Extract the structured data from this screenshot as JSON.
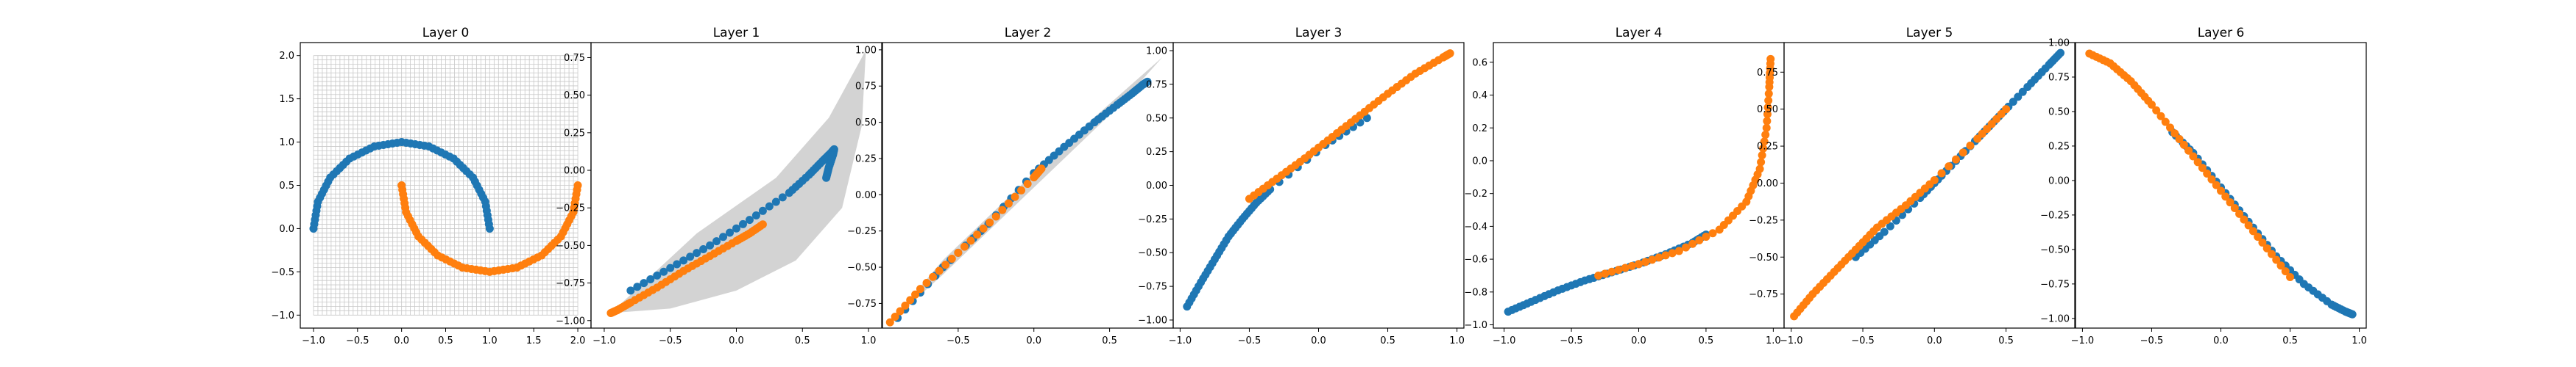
{
  "colors": {
    "class0": "#1f77b4",
    "class1": "#ff7f0e",
    "manifold_fill": "#d3d3d3",
    "grid": "#c8c8c8"
  },
  "chart_data": [
    {
      "type": "scatter",
      "title": "Layer 0",
      "xlim": [
        -1.15,
        2.15
      ],
      "ylim": [
        -1.15,
        2.15
      ],
      "xticks": [
        -1.0,
        -0.5,
        0.0,
        0.5,
        1.0,
        1.5,
        2.0
      ],
      "yticks": [
        -1.0,
        -0.5,
        0.0,
        0.5,
        1.0,
        1.5,
        2.0
      ],
      "tick_labels_x": [
        "−1.0",
        "−0.5",
        "0.0",
        "0.5",
        "1.0",
        "1.5",
        "2.0"
      ],
      "tick_labels_y": [
        "−1.0",
        "−0.5",
        "0.0",
        "0.5",
        "1.0",
        "1.5",
        "2.0"
      ],
      "grid": true,
      "series": [
        {
          "name": "",
          "color_key": "class0",
          "x": [
            -1.0,
            -0.95,
            -0.81,
            -0.59,
            -0.31,
            0.0,
            0.31,
            0.59,
            0.81,
            0.95,
            1.0
          ],
          "y": [
            0.0,
            0.31,
            0.59,
            0.81,
            0.95,
            1.0,
            0.95,
            0.81,
            0.59,
            0.31,
            0.0
          ]
        },
        {
          "name": "",
          "color_key": "class1",
          "x": [
            0.0,
            0.05,
            0.19,
            0.41,
            0.69,
            1.0,
            1.31,
            1.59,
            1.81,
            1.95,
            2.0
          ],
          "y": [
            0.5,
            0.19,
            -0.09,
            -0.31,
            -0.45,
            -0.5,
            -0.45,
            -0.31,
            -0.09,
            0.19,
            0.5
          ]
        }
      ]
    },
    {
      "type": "scatter",
      "title": "Layer 1",
      "xlim": [
        -1.1,
        1.1
      ],
      "ylim": [
        -1.05,
        0.85
      ],
      "xticks": [
        -1.0,
        -0.5,
        0.0,
        0.5,
        1.0
      ],
      "yticks": [
        -1.0,
        -0.75,
        -0.5,
        -0.25,
        0.0,
        0.25,
        0.5,
        0.75
      ],
      "tick_labels_x": [
        "−1.0",
        "−0.5",
        "0.0",
        "0.5",
        "1.0"
      ],
      "tick_labels_y": [
        "−1.00",
        "−0.75",
        "−0.50",
        "−0.25",
        "0.00",
        "0.25",
        "0.50",
        "0.75"
      ],
      "grid": false,
      "region": {
        "x": [
          -0.95,
          -0.3,
          0.3,
          0.7,
          0.98,
          0.95,
          0.8,
          0.45,
          0.0,
          -0.5,
          -0.95
        ],
        "y": [
          -0.95,
          -0.42,
          -0.05,
          0.35,
          0.8,
          0.3,
          -0.25,
          -0.6,
          -0.8,
          -0.92,
          -0.95
        ]
      },
      "series": [
        {
          "name": "",
          "color_key": "class0",
          "x": [
            -0.8,
            -0.5,
            -0.2,
            0.1,
            0.4,
            0.55,
            0.65,
            0.72,
            0.74,
            0.73,
            0.7,
            0.68
          ],
          "y": [
            -0.8,
            -0.65,
            -0.5,
            -0.33,
            -0.15,
            -0.03,
            0.06,
            0.12,
            0.14,
            0.1,
            0.02,
            -0.05
          ]
        },
        {
          "name": "",
          "color_key": "class1",
          "x": [
            -0.95,
            -0.9,
            -0.8,
            -0.6,
            -0.4,
            -0.2,
            0.0,
            0.1,
            0.2
          ],
          "y": [
            -0.95,
            -0.93,
            -0.88,
            -0.78,
            -0.67,
            -0.57,
            -0.47,
            -0.42,
            -0.36
          ]
        }
      ]
    },
    {
      "type": "scatter",
      "title": "Layer 2",
      "xlim": [
        -1.0,
        0.92
      ],
      "ylim": [
        -0.92,
        1.05
      ],
      "xticks": [
        -0.5,
        0.0,
        0.5
      ],
      "yticks": [
        -0.75,
        -0.5,
        -0.25,
        0.0,
        0.25,
        0.5,
        0.75,
        1.0
      ],
      "tick_labels_x": [
        "−0.5",
        "0.0",
        "0.5"
      ],
      "tick_labels_y": [
        "−0.75",
        "−0.50",
        "−0.25",
        "0.00",
        "0.25",
        "0.50",
        "0.75",
        "1.00"
      ],
      "grid": false,
      "region": {
        "x": [
          -0.95,
          -0.6,
          -0.2,
          0.2,
          0.6,
          0.85,
          0.55,
          0.2,
          -0.2,
          -0.6,
          -0.95
        ],
        "y": [
          -0.88,
          -0.45,
          -0.05,
          0.35,
          0.72,
          0.95,
          0.6,
          0.25,
          -0.15,
          -0.55,
          -0.88
        ]
      },
      "series": [
        {
          "name": "",
          "color_key": "class0",
          "x": [
            -0.9,
            -0.6,
            -0.3,
            0.0,
            0.2,
            0.4,
            0.55,
            0.65,
            0.72,
            0.75
          ],
          "y": [
            -0.85,
            -0.5,
            -0.2,
            0.15,
            0.33,
            0.5,
            0.62,
            0.7,
            0.76,
            0.78
          ]
        },
        {
          "name": "",
          "color_key": "class1",
          "x": [
            -0.95,
            -0.75,
            -0.5,
            -0.25,
            0.0,
            0.05
          ],
          "y": [
            -0.88,
            -0.65,
            -0.4,
            -0.15,
            0.12,
            0.18
          ]
        }
      ]
    },
    {
      "type": "scatter",
      "title": "Layer 3",
      "xlim": [
        -1.05,
        1.05
      ],
      "ylim": [
        -1.06,
        1.06
      ],
      "xticks": [
        -1.0,
        -0.5,
        0.0,
        0.5,
        1.0
      ],
      "yticks": [
        -1.0,
        -0.75,
        -0.5,
        -0.25,
        0.0,
        0.25,
        0.5,
        0.75,
        1.0
      ],
      "tick_labels_x": [
        "−1.0",
        "−0.5",
        "0.0",
        "0.5",
        "1.0"
      ],
      "tick_labels_y": [
        "−1.00",
        "−0.75",
        "−0.50",
        "−0.25",
        "0.00",
        "0.25",
        "0.50",
        "0.75",
        "1.00"
      ],
      "grid": false,
      "series": [
        {
          "name": "",
          "color_key": "class0",
          "x": [
            -0.95,
            -0.85,
            -0.75,
            -0.65,
            -0.55,
            -0.45,
            -0.35,
            0.05,
            0.35
          ],
          "y": [
            -0.9,
            -0.72,
            -0.55,
            -0.38,
            -0.25,
            -0.13,
            -0.03,
            0.3,
            0.5
          ]
        },
        {
          "name": "",
          "color_key": "class1",
          "x": [
            -0.5,
            -0.3,
            -0.1,
            0.1,
            0.3,
            0.5,
            0.7,
            0.9,
            0.95
          ],
          "y": [
            -0.1,
            0.05,
            0.2,
            0.36,
            0.52,
            0.68,
            0.83,
            0.95,
            0.98
          ]
        }
      ]
    },
    {
      "type": "scatter",
      "title": "Layer 4",
      "xlim": [
        -1.08,
        1.08
      ],
      "ylim": [
        -1.02,
        0.72
      ],
      "xticks": [
        -1.0,
        -0.5,
        0.0,
        0.5,
        1.0
      ],
      "yticks": [
        -1.0,
        -0.8,
        -0.6,
        -0.4,
        -0.2,
        0.0,
        0.2,
        0.4,
        0.6
      ],
      "tick_labels_x": [
        "−1.0",
        "−0.5",
        "0.0",
        "0.5",
        "1.0"
      ],
      "tick_labels_y": [
        "−1.0",
        "−0.8",
        "−0.6",
        "−0.4",
        "−0.2",
        "0.0",
        "0.2",
        "0.4",
        "0.6"
      ],
      "grid": false,
      "series": [
        {
          "name": "",
          "color_key": "class0",
          "x": [
            -0.97,
            -0.8,
            -0.6,
            -0.4,
            -0.2,
            0.0,
            0.2,
            0.4,
            0.5
          ],
          "y": [
            -0.92,
            -0.86,
            -0.79,
            -0.73,
            -0.68,
            -0.63,
            -0.57,
            -0.5,
            -0.45
          ]
        },
        {
          "name": "",
          "color_key": "class1",
          "x": [
            -0.3,
            0.0,
            0.3,
            0.6,
            0.8,
            0.9,
            0.95,
            0.97,
            0.98
          ],
          "y": [
            -0.7,
            -0.63,
            -0.55,
            -0.42,
            -0.25,
            -0.05,
            0.2,
            0.45,
            0.62
          ]
        }
      ]
    },
    {
      "type": "scatter",
      "title": "Layer 5",
      "xlim": [
        -1.05,
        0.98
      ],
      "ylim": [
        -0.98,
        0.95
      ],
      "xticks": [
        -1.0,
        -0.5,
        0.0,
        0.5
      ],
      "yticks": [
        -0.75,
        -0.5,
        -0.25,
        0.0,
        0.25,
        0.5,
        0.75
      ],
      "tick_labels_x": [
        "−1.0",
        "−0.5",
        "0.0",
        "0.5"
      ],
      "tick_labels_y": [
        "−0.75",
        "−0.50",
        "−0.25",
        "0.00",
        "0.25",
        "0.50",
        "0.75"
      ],
      "grid": false,
      "series": [
        {
          "name": "",
          "color_key": "class0",
          "x": [
            -0.55,
            -0.35,
            -0.1,
            0.05,
            0.25,
            0.45,
            0.65,
            0.8,
            0.88
          ],
          "y": [
            -0.5,
            -0.33,
            -0.1,
            0.05,
            0.25,
            0.45,
            0.65,
            0.8,
            0.88
          ]
        },
        {
          "name": "",
          "color_key": "class1",
          "x": [
            -0.98,
            -0.85,
            -0.7,
            -0.55,
            -0.4,
            -0.2,
            0.0,
            0.3,
            0.5
          ],
          "y": [
            -0.9,
            -0.75,
            -0.6,
            -0.45,
            -0.3,
            -0.15,
            0.02,
            0.3,
            0.5
          ]
        }
      ]
    },
    {
      "type": "scatter",
      "title": "Layer 6",
      "xlim": [
        -1.05,
        1.05
      ],
      "ylim": [
        -1.07,
        1.0
      ],
      "xticks": [
        -1.0,
        -0.5,
        0.0,
        0.5,
        1.0
      ],
      "yticks": [
        -1.0,
        -0.75,
        -0.5,
        -0.25,
        0.0,
        0.25,
        0.5,
        0.75,
        1.0
      ],
      "tick_labels_x": [
        "−1.0",
        "−0.5",
        "0.0",
        "0.5",
        "1.0"
      ],
      "tick_labels_y": [
        "−1.00",
        "−0.75",
        "−0.50",
        "−0.25",
        "0.00",
        "0.25",
        "0.50",
        "0.75",
        "1.00"
      ],
      "grid": false,
      "series": [
        {
          "name": "",
          "color_key": "class0",
          "x": [
            -0.35,
            -0.2,
            0.0,
            0.2,
            0.4,
            0.6,
            0.8,
            0.9,
            0.95
          ],
          "y": [
            0.35,
            0.2,
            -0.05,
            -0.3,
            -0.55,
            -0.75,
            -0.9,
            -0.95,
            -0.97
          ]
        },
        {
          "name": "",
          "color_key": "class1",
          "x": [
            -0.95,
            -0.8,
            -0.65,
            -0.5,
            -0.3,
            -0.1,
            0.1,
            0.3,
            0.5
          ],
          "y": [
            0.92,
            0.85,
            0.72,
            0.55,
            0.3,
            0.05,
            -0.2,
            -0.45,
            -0.7
          ]
        }
      ]
    }
  ]
}
